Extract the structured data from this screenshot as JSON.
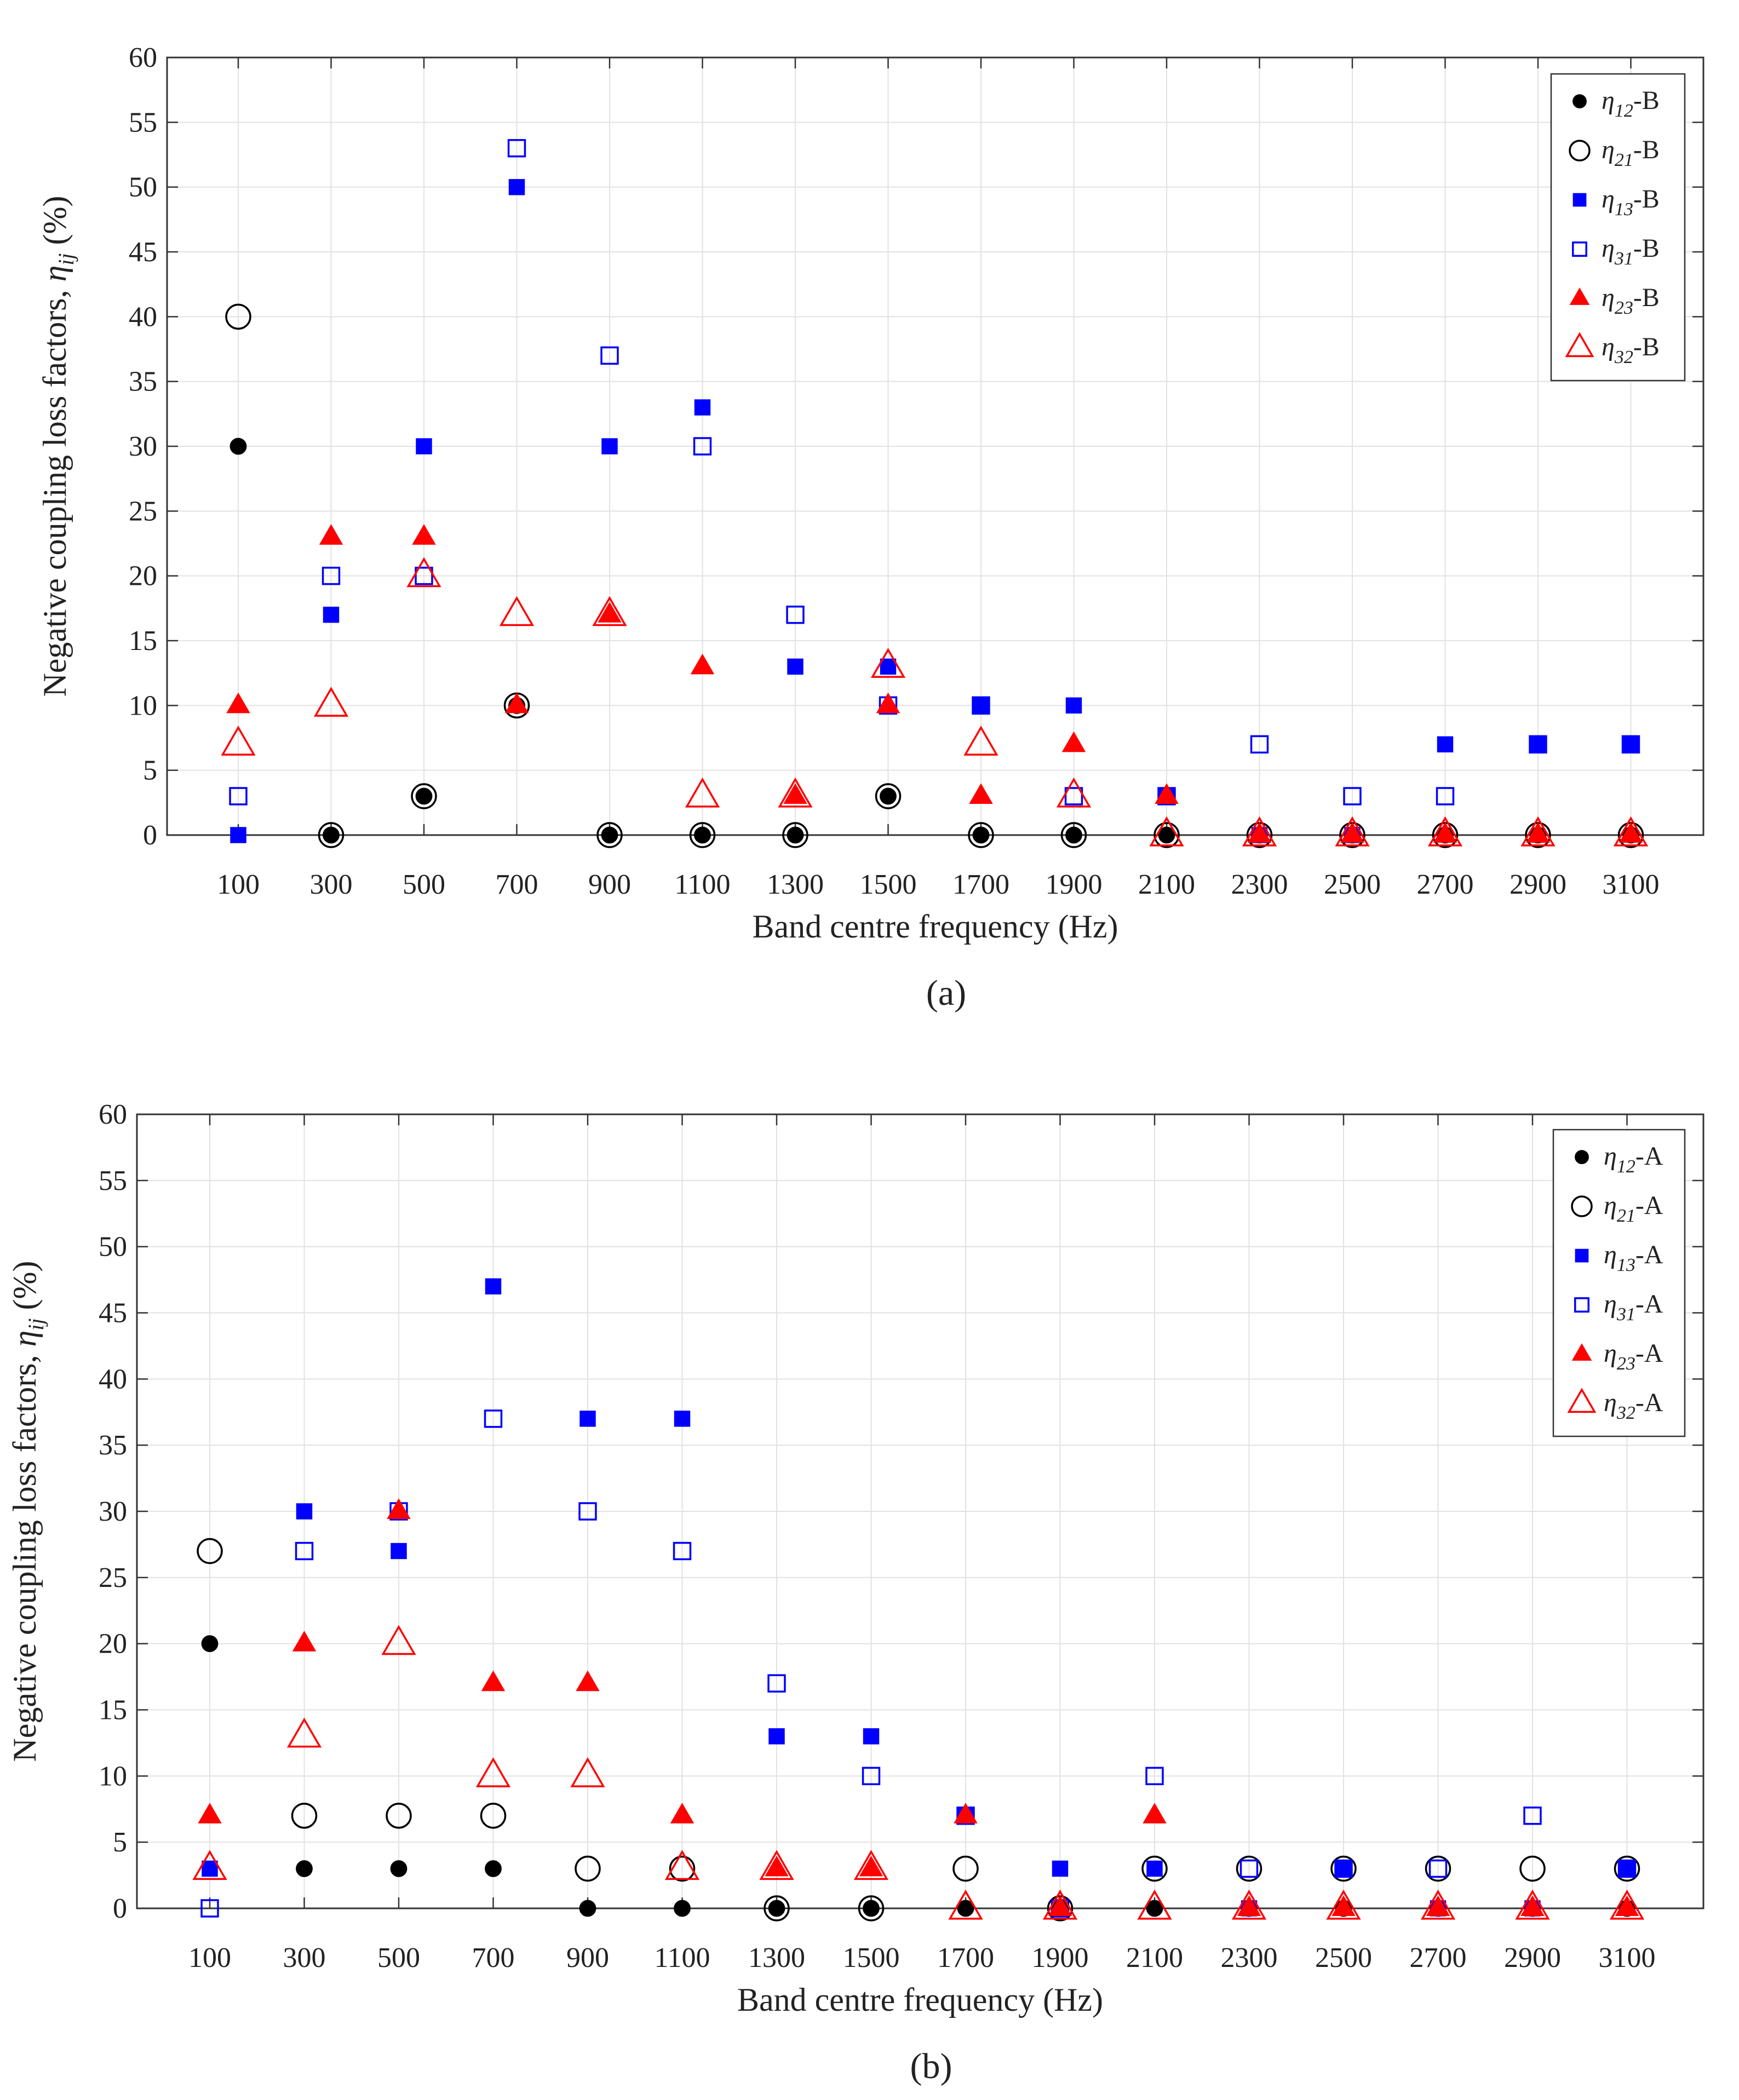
{
  "chart_data": [
    {
      "type": "scatter",
      "panel_label": "(a)",
      "xlabel": "Band centre frequency (Hz)",
      "ylabel_main": "Negative coupling loss factors, ",
      "ylabel_symbol": "η",
      "ylabel_sub": "ij",
      "ylabel_unit": " (%)",
      "ylim": [
        0,
        60
      ],
      "yticks": [
        "0",
        "5",
        "10",
        "15",
        "20",
        "25",
        "30",
        "35",
        "40",
        "45",
        "50",
        "55",
        "60"
      ],
      "categories": [
        "100",
        "300",
        "500",
        "700",
        "900",
        "1100",
        "1300",
        "1500",
        "1700",
        "1900",
        "2100",
        "2300",
        "2500",
        "2700",
        "2900",
        "3100"
      ],
      "grid": true,
      "legend_position": "top-right",
      "series": [
        {
          "name": "η12-B",
          "sym": "η",
          "sub": "12",
          "suffix": "-B",
          "marker": "circle",
          "filled": true,
          "color": "#000000",
          "values": [
            30,
            0,
            3,
            10,
            0,
            0,
            0,
            3,
            0,
            0,
            0,
            0,
            0,
            0,
            0,
            0
          ]
        },
        {
          "name": "η21-B",
          "sym": "η",
          "sub": "21",
          "suffix": "-B",
          "marker": "circle",
          "filled": false,
          "color": "#000000",
          "values": [
            40,
            0,
            3,
            10,
            0,
            0,
            0,
            3,
            0,
            0,
            0,
            0,
            0,
            0,
            0,
            0
          ]
        },
        {
          "name": "η13-B",
          "sym": "η",
          "sub": "13",
          "suffix": "-B",
          "marker": "square",
          "filled": true,
          "color": "#0000ff",
          "values": [
            0,
            17,
            30,
            50,
            30,
            33,
            13,
            13,
            10,
            10,
            3,
            0,
            0,
            7,
            7,
            7
          ]
        },
        {
          "name": "η31-B",
          "sym": "η",
          "sub": "31",
          "suffix": "-B",
          "marker": "square",
          "filled": false,
          "color": "#0000ff",
          "values": [
            3,
            20,
            20,
            53,
            37,
            30,
            17,
            10,
            10,
            3,
            3,
            7,
            3,
            3,
            7,
            7
          ]
        },
        {
          "name": "η23-B",
          "sym": "η",
          "sub": "23",
          "suffix": "-B",
          "marker": "triangle",
          "filled": true,
          "color": "#ff0000",
          "values": [
            10,
            23,
            23,
            10,
            17,
            13,
            3,
            10,
            3,
            7,
            3,
            0,
            0,
            0,
            0,
            0
          ]
        },
        {
          "name": "η32-B",
          "sym": "η",
          "sub": "32",
          "suffix": "-B",
          "marker": "triangle",
          "filled": false,
          "color": "#ff0000",
          "values": [
            7,
            10,
            20,
            17,
            17,
            3,
            3,
            13,
            7,
            3,
            0,
            0,
            0,
            0,
            0,
            0
          ]
        }
      ]
    },
    {
      "type": "scatter",
      "panel_label": "(b)",
      "xlabel": "Band centre frequency (Hz)",
      "ylabel_main": "Negative coupling loss factors, ",
      "ylabel_symbol": "η",
      "ylabel_sub": "ij",
      "ylabel_unit": " (%)",
      "ylim": [
        0,
        60
      ],
      "yticks": [
        "0",
        "5",
        "10",
        "15",
        "20",
        "25",
        "30",
        "35",
        "40",
        "45",
        "50",
        "55",
        "60"
      ],
      "categories": [
        "100",
        "300",
        "500",
        "700",
        "900",
        "1100",
        "1300",
        "1500",
        "1700",
        "1900",
        "2100",
        "2300",
        "2500",
        "2700",
        "2900",
        "3100"
      ],
      "grid": true,
      "legend_position": "top-right",
      "series": [
        {
          "name": "η12-A",
          "sym": "η",
          "sub": "12",
          "suffix": "-A",
          "marker": "circle",
          "filled": true,
          "color": "#000000",
          "values": [
            20,
            3,
            3,
            3,
            0,
            0,
            0,
            0,
            0,
            0,
            0,
            0,
            0,
            0,
            0,
            0
          ]
        },
        {
          "name": "η21-A",
          "sym": "η",
          "sub": "21",
          "suffix": "-A",
          "marker": "circle",
          "filled": false,
          "color": "#000000",
          "values": [
            27,
            7,
            7,
            7,
            3,
            3,
            0,
            0,
            3,
            0,
            3,
            3,
            3,
            3,
            3,
            3
          ]
        },
        {
          "name": "η13-A",
          "sym": "η",
          "sub": "13",
          "suffix": "-A",
          "marker": "square",
          "filled": true,
          "color": "#0000ff",
          "values": [
            3,
            30,
            27,
            47,
            37,
            37,
            13,
            13,
            7,
            3,
            3,
            0,
            3,
            0,
            0,
            3
          ]
        },
        {
          "name": "η31-A",
          "sym": "η",
          "sub": "31",
          "suffix": "-A",
          "marker": "square",
          "filled": false,
          "color": "#0000ff",
          "values": [
            0,
            27,
            30,
            37,
            30,
            27,
            17,
            10,
            7,
            0,
            10,
            3,
            3,
            3,
            7,
            3
          ]
        },
        {
          "name": "η23-A",
          "sym": "η",
          "sub": "23",
          "suffix": "-A",
          "marker": "triangle",
          "filled": true,
          "color": "#ff0000",
          "values": [
            7,
            20,
            30,
            17,
            17,
            7,
            3,
            3,
            7,
            0,
            7,
            0,
            0,
            0,
            0,
            0
          ]
        },
        {
          "name": "η32-A",
          "sym": "η",
          "sub": "32",
          "suffix": "-A",
          "marker": "triangle",
          "filled": false,
          "color": "#ff0000",
          "values": [
            3,
            13,
            20,
            10,
            10,
            3,
            3,
            3,
            0,
            0,
            0,
            0,
            0,
            0,
            0,
            0
          ]
        }
      ]
    }
  ]
}
